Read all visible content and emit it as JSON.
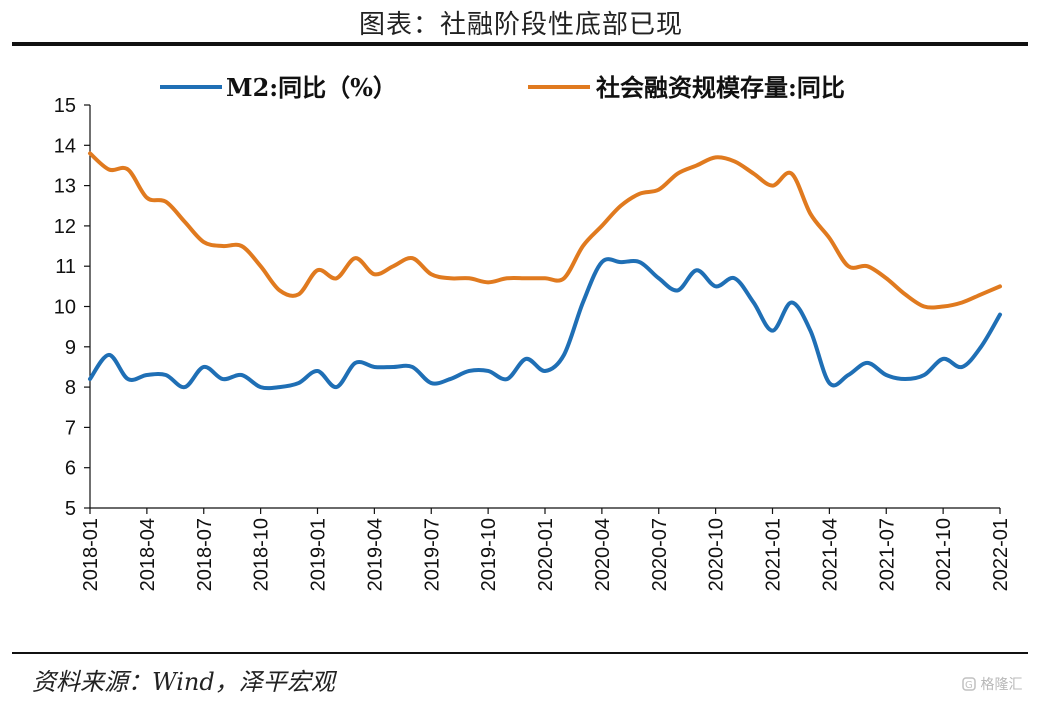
{
  "figure": {
    "title": "图表：社融阶段性底部已现",
    "source": "资料来源：Wind，泽平宏观",
    "watermark": "格隆汇"
  },
  "chart_data": {
    "type": "line",
    "xlabel": "",
    "ylabel": "",
    "ylim": [
      5,
      15
    ],
    "yticks": [
      5,
      6,
      7,
      8,
      9,
      10,
      11,
      12,
      13,
      14,
      15
    ],
    "xticks": [
      "2018-01",
      "2018-04",
      "2018-07",
      "2018-10",
      "2019-01",
      "2019-04",
      "2019-07",
      "2019-10",
      "2020-01",
      "2020-04",
      "2020-07",
      "2020-10",
      "2021-01",
      "2021-04",
      "2021-07",
      "2021-10",
      "2022-01"
    ],
    "x": [
      "2018-01",
      "2018-02",
      "2018-03",
      "2018-04",
      "2018-05",
      "2018-06",
      "2018-07",
      "2018-08",
      "2018-09",
      "2018-10",
      "2018-11",
      "2018-12",
      "2019-01",
      "2019-02",
      "2019-03",
      "2019-04",
      "2019-05",
      "2019-06",
      "2019-07",
      "2019-08",
      "2019-09",
      "2019-10",
      "2019-11",
      "2019-12",
      "2020-01",
      "2020-02",
      "2020-03",
      "2020-04",
      "2020-05",
      "2020-06",
      "2020-07",
      "2020-08",
      "2020-09",
      "2020-10",
      "2020-11",
      "2020-12",
      "2021-01",
      "2021-02",
      "2021-03",
      "2021-04",
      "2021-05",
      "2021-06",
      "2021-07",
      "2021-08",
      "2021-09",
      "2021-10",
      "2021-11",
      "2021-12",
      "2022-01"
    ],
    "legend_position": "top",
    "grid": false,
    "series": [
      {
        "name": "M2:同比（%）",
        "color": "#1f6fb5",
        "values": [
          8.2,
          8.8,
          8.2,
          8.3,
          8.3,
          8.0,
          8.5,
          8.2,
          8.3,
          8.0,
          8.0,
          8.1,
          8.4,
          8.0,
          8.6,
          8.5,
          8.5,
          8.5,
          8.1,
          8.2,
          8.4,
          8.4,
          8.2,
          8.7,
          8.4,
          8.8,
          10.1,
          11.1,
          11.1,
          11.1,
          10.7,
          10.4,
          10.9,
          10.5,
          10.7,
          10.1,
          9.4,
          10.1,
          9.4,
          8.1,
          8.3,
          8.6,
          8.3,
          8.2,
          8.3,
          8.7,
          8.5,
          9.0,
          9.8
        ]
      },
      {
        "name": "社会融资规模存量:同比",
        "color": "#e07a1f",
        "values": [
          13.8,
          13.4,
          13.4,
          12.7,
          12.6,
          12.1,
          11.6,
          11.5,
          11.5,
          11.0,
          10.4,
          10.3,
          10.9,
          10.7,
          11.2,
          10.8,
          11.0,
          11.2,
          10.8,
          10.7,
          10.7,
          10.6,
          10.7,
          10.7,
          10.7,
          10.7,
          11.5,
          12.0,
          12.5,
          12.8,
          12.9,
          13.3,
          13.5,
          13.7,
          13.6,
          13.3,
          13.0,
          13.3,
          12.3,
          11.7,
          11.0,
          11.0,
          10.7,
          10.3,
          10.0,
          10.0,
          10.1,
          10.3,
          10.5
        ]
      }
    ]
  }
}
